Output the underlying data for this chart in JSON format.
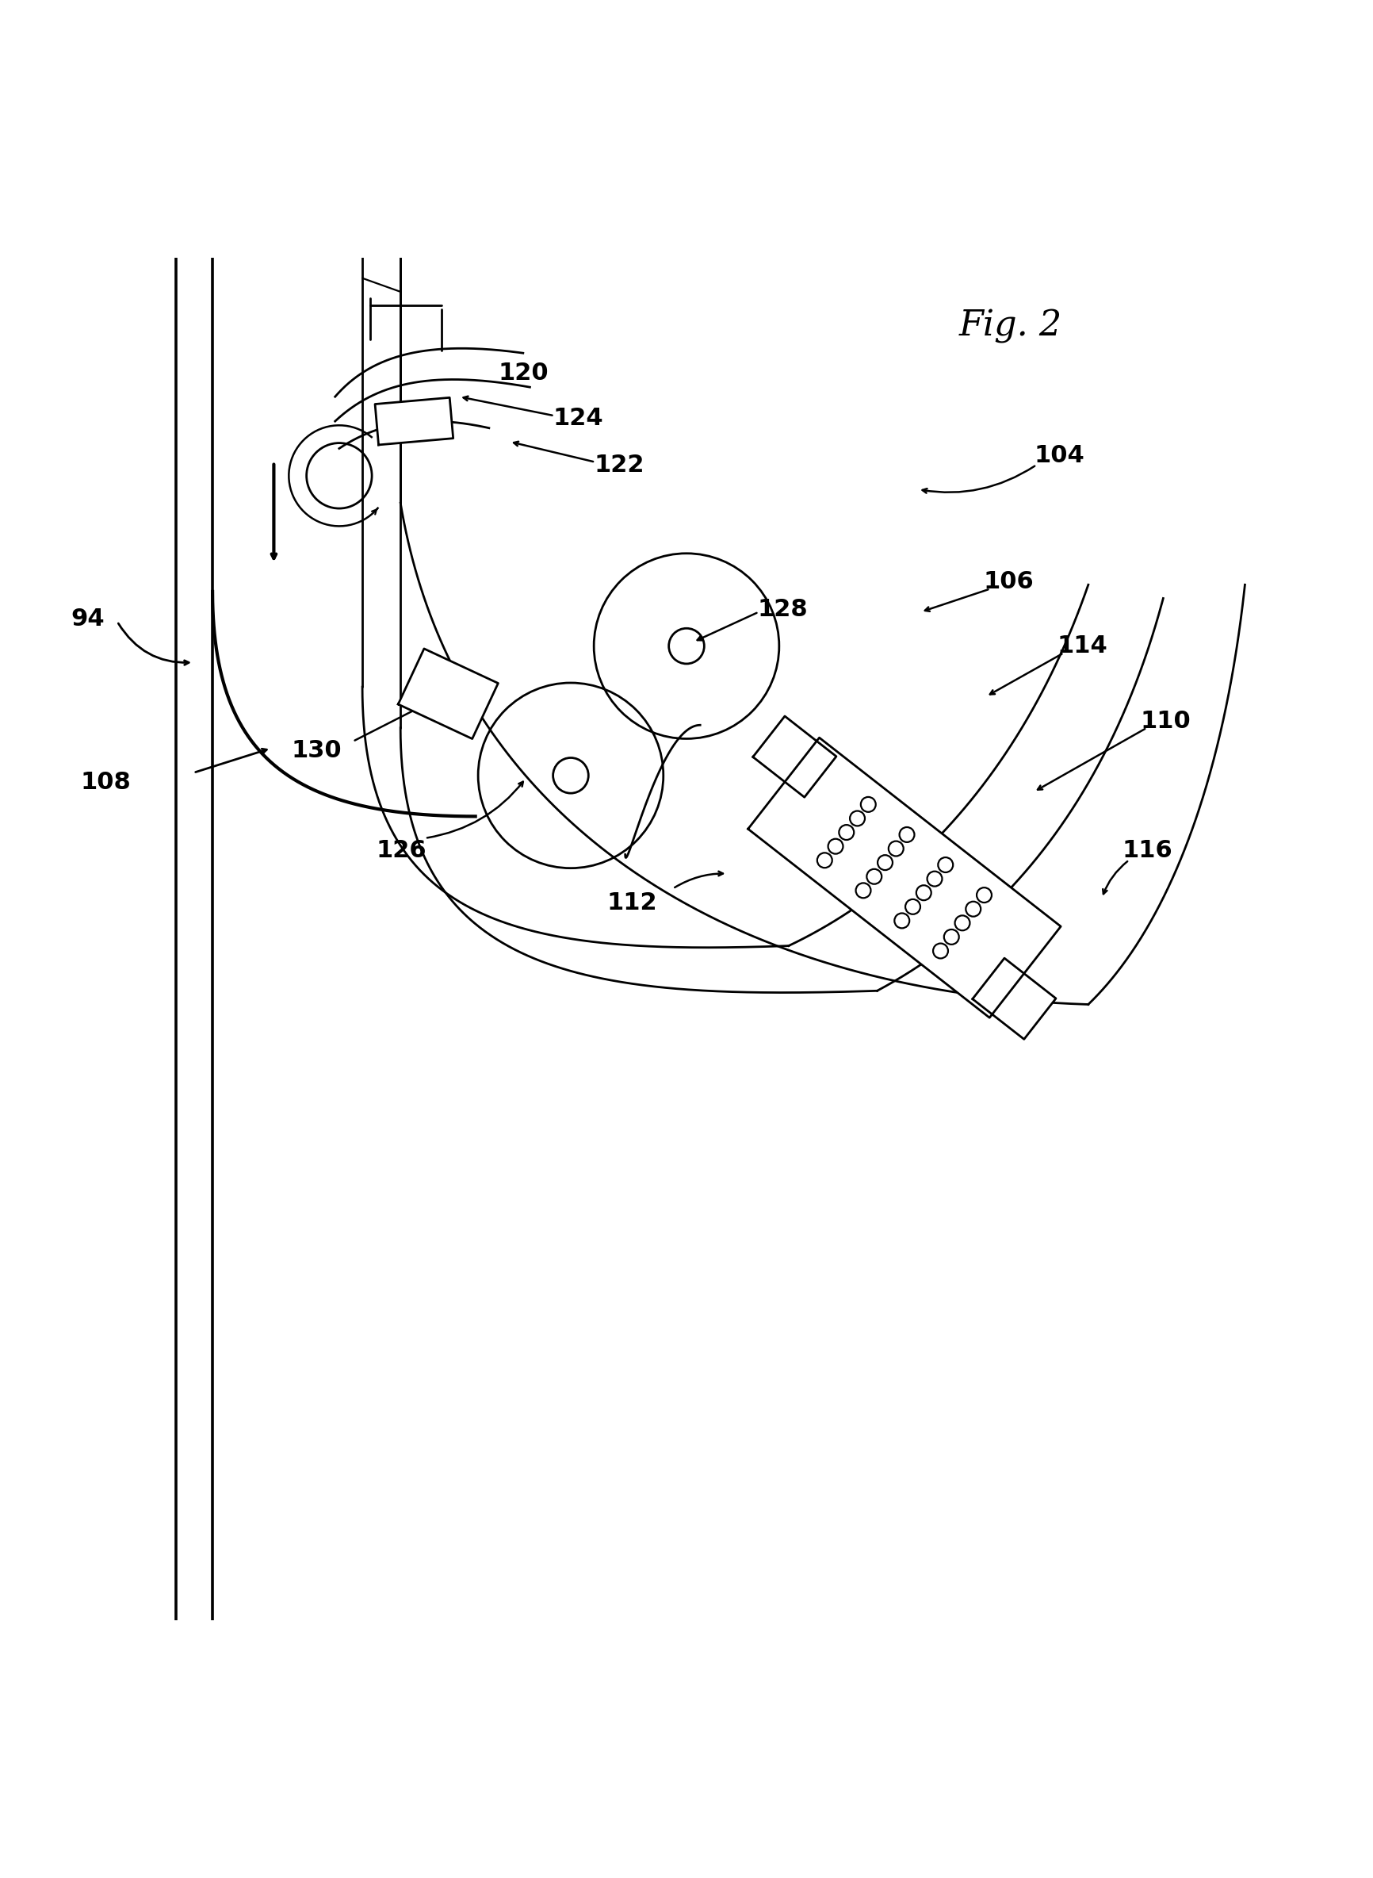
{
  "fig_label": "Fig. 2",
  "bg_color": "#ffffff",
  "line_color": "#000000",
  "line_width": 2.0,
  "font_size": 22,
  "label_fontsize": 22
}
